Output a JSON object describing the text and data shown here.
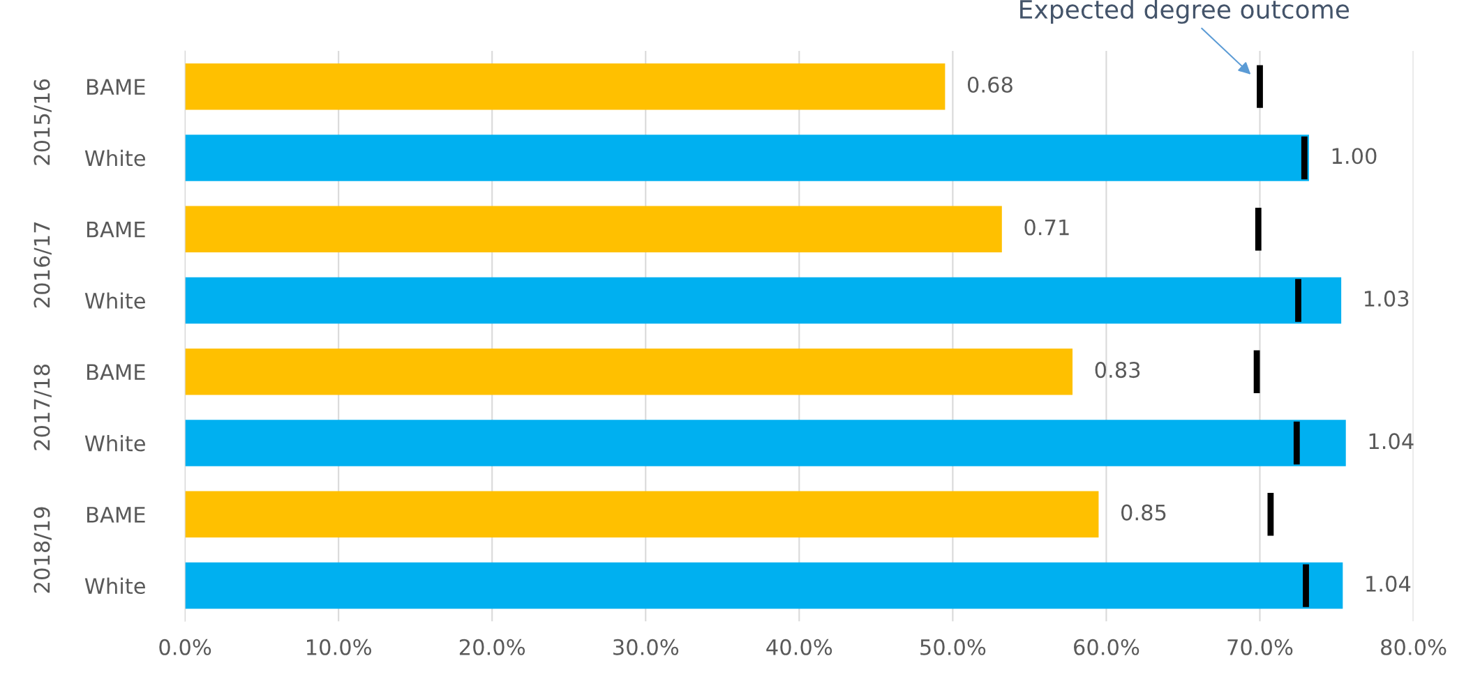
{
  "chart_data": {
    "type": "bar",
    "orientation": "horizontal",
    "categories": [
      "BAME",
      "White",
      "BAME",
      "White",
      "BAME",
      "White",
      "BAME",
      "White"
    ],
    "series": [
      {
        "colors": [
          "#ffc000",
          "#00b0f0",
          "#ffc000",
          "#00b0f0",
          "#ffc000",
          "#00b0f0",
          "#ffc000",
          "#00b0f0"
        ],
        "values": [
          49.5,
          73.2,
          53.2,
          75.3,
          57.8,
          75.6,
          59.5,
          75.4
        ]
      },
      {
        "name": "Expected degree outcome",
        "color": "#000000",
        "base": [
          69.8,
          72.7,
          69.7,
          72.3,
          69.6,
          72.2,
          70.5,
          72.8
        ],
        "values": [
          0.4,
          0.4,
          0.4,
          0.4,
          0.4,
          0.4,
          0.4,
          0.4
        ]
      }
    ],
    "annotations": [
      "2015/16",
      "2016/17",
      "2017/18",
      "2018/19",
      {
        "text": "0.68",
        "x": 49.5
      },
      {
        "text": "1.00",
        "x": 73.2
      },
      {
        "text": "0.71",
        "x": 53.2
      },
      {
        "text": "1.03",
        "x": 75.3
      },
      {
        "text": "0.83",
        "x": 57.8
      },
      {
        "text": "1.04",
        "x": 75.6
      },
      {
        "text": "0.85",
        "x": 59.5
      },
      {
        "text": "1.04",
        "x": 75.4
      }
    ],
    "xlim": [
      0,
      80
    ],
    "xticks": [
      {
        "value": 0,
        "label": "0.0%"
      },
      {
        "value": 10,
        "label": "10.0%"
      },
      {
        "value": 20,
        "label": "20.0%"
      },
      {
        "value": 30,
        "label": "30.0%"
      },
      {
        "value": 40,
        "label": "40.0%"
      },
      {
        "value": 50,
        "label": "50.0%"
      },
      {
        "value": 60,
        "label": "60.0%"
      },
      {
        "value": 70,
        "label": "70.0%"
      },
      {
        "value": 80,
        "label": "80.0%"
      }
    ],
    "grid": "x",
    "legend": false
  }
}
